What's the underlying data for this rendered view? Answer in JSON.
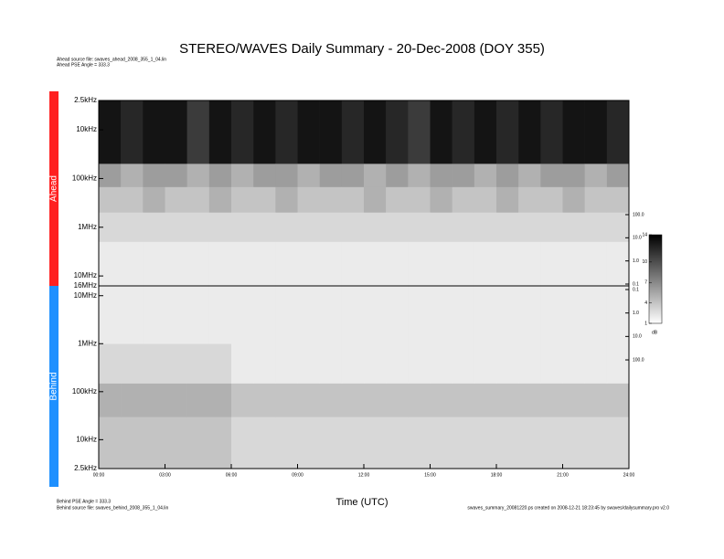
{
  "title": "STEREO/WAVES Daily Summary - 20-Dec-2008 (DOY 355)",
  "notes_top": [
    "Ahead source file: swaves_ahead_2008_355_1_04.lin",
    "Ahead PSE Angle = 333.3"
  ],
  "notes_bottom": [
    "Behind PSE Angle = 333.3",
    "Behind source file: swaves_behind_2008_355_1_04.lin"
  ],
  "footer": "swaves_summary_20081220.ps created on 2008-12-21 18:23:45 by swaves/dailysummary.pro v2.0",
  "colorbar": {
    "lim": [
      1,
      14
    ],
    "ticks": [
      1,
      4,
      7,
      10,
      14
    ],
    "label": "dB"
  },
  "chart_data": [
    {
      "type": "heatmap",
      "name": "Ahead",
      "color": "#ff2020",
      "log_y": true,
      "xlim": [
        0,
        24
      ],
      "x_bins": [
        0,
        1,
        2,
        3,
        4,
        5,
        6,
        7,
        8,
        9,
        10,
        11,
        12,
        13,
        14,
        15,
        16,
        17,
        18,
        19,
        20,
        21,
        22,
        23,
        24
      ],
      "ylim": [
        2500,
        16000000
      ],
      "yticks": [
        {
          "value": 2500,
          "label": "2.5kHz"
        },
        {
          "value": 10000,
          "label": "10kHz"
        },
        {
          "value": 100000,
          "label": "100kHz"
        },
        {
          "value": 1000000,
          "label": "1MHz"
        },
        {
          "value": 10000000,
          "label": "10MHz"
        },
        {
          "value": 16000000,
          "label": "16MHz"
        }
      ],
      "y2lim": [
        0.0834,
        8600000
      ],
      "y2ticks": [
        0.1,
        {
          "value": 1,
          "label": "1.0"
        },
        {
          "value": 10,
          "label": "10.0"
        },
        {
          "value": 100,
          "label": "100.0"
        }
      ],
      "bands": [
        2500,
        50000,
        150000,
        500000,
        2000000,
        16000000
      ],
      "values": [
        [
          13,
          12,
          13,
          13,
          11,
          13,
          12,
          13,
          12,
          13,
          13,
          12,
          13,
          12,
          11,
          13,
          12,
          13,
          12,
          13,
          12,
          13,
          13,
          12
        ],
        [
          6,
          5,
          6,
          6,
          5,
          6,
          5,
          6,
          6,
          5,
          6,
          6,
          5,
          6,
          5,
          6,
          6,
          5,
          6,
          5,
          6,
          6,
          5,
          6
        ],
        [
          4,
          4,
          5,
          4,
          4,
          5,
          4,
          4,
          5,
          4,
          4,
          4,
          5,
          4,
          4,
          5,
          4,
          4,
          5,
          4,
          4,
          5,
          4,
          4
        ],
        [
          3,
          3,
          3,
          3,
          3,
          3,
          3,
          3,
          3,
          3,
          3,
          3,
          3,
          3,
          3,
          3,
          3,
          3,
          3,
          3,
          3,
          3,
          3,
          3
        ],
        [
          2,
          2,
          2,
          2,
          2,
          2,
          2,
          2,
          2,
          2,
          2,
          2,
          2,
          2,
          2,
          2,
          2,
          2,
          2,
          2,
          2,
          2,
          2,
          2
        ]
      ]
    },
    {
      "type": "heatmap",
      "name": "Behind",
      "color": "#1e90ff",
      "log_y": true,
      "xlabel": "Time (UTC)",
      "xlim": [
        0,
        24
      ],
      "xticks": [
        {
          "value": 0,
          "label": "00:00"
        },
        {
          "value": 3,
          "label": "03:00"
        },
        {
          "value": 6,
          "label": "06:00"
        },
        {
          "value": 9,
          "label": "09:00"
        },
        {
          "value": 12,
          "label": "12:00"
        },
        {
          "value": 15,
          "label": "15:00"
        },
        {
          "value": 18,
          "label": "18:00"
        },
        {
          "value": 21,
          "label": "21:00"
        },
        {
          "value": 24,
          "label": "24:00"
        }
      ],
      "x_bins": [
        0,
        1,
        2,
        3,
        4,
        5,
        6,
        7,
        8,
        9,
        10,
        11,
        12,
        13,
        14,
        15,
        16,
        17,
        18,
        19,
        20,
        21,
        22,
        23,
        24
      ],
      "ylim": [
        16000000,
        2500
      ],
      "yticks": [
        {
          "value": 10000000,
          "label": "10MHz"
        },
        {
          "value": 1000000,
          "label": "1MHz"
        },
        {
          "value": 100000,
          "label": "100kHz"
        },
        {
          "value": 10000,
          "label": "10kHz"
        },
        {
          "value": 2500,
          "label": "2.5kHz"
        }
      ],
      "y2lim": [
        4300000,
        0.0699
      ],
      "y2ticks": [
        {
          "value": 100,
          "label": "100.0"
        },
        {
          "value": 10,
          "label": "10.0"
        },
        {
          "value": 1,
          "label": "1.0"
        },
        0.1
      ],
      "bands": [
        2500,
        30000,
        150000,
        1000000,
        16000000
      ],
      "values": [
        [
          4,
          4,
          4,
          4,
          4,
          4,
          3,
          3,
          3,
          3,
          3,
          3,
          3,
          3,
          3,
          3,
          3,
          3,
          3,
          3,
          3,
          3,
          3,
          3
        ],
        [
          5,
          5,
          5,
          5,
          5,
          5,
          4,
          4,
          4,
          4,
          4,
          4,
          4,
          4,
          4,
          4,
          4,
          4,
          4,
          4,
          4,
          4,
          4,
          4
        ],
        [
          3,
          3,
          3,
          3,
          3,
          3,
          2,
          2,
          2,
          2,
          2,
          2,
          2,
          2,
          2,
          2,
          2,
          2,
          2,
          2,
          2,
          2,
          2,
          2
        ],
        [
          2,
          2,
          2,
          2,
          2,
          2,
          2,
          2,
          2,
          2,
          2,
          2,
          2,
          2,
          2,
          2,
          2,
          2,
          2,
          2,
          2,
          2,
          2,
          2
        ]
      ]
    }
  ]
}
